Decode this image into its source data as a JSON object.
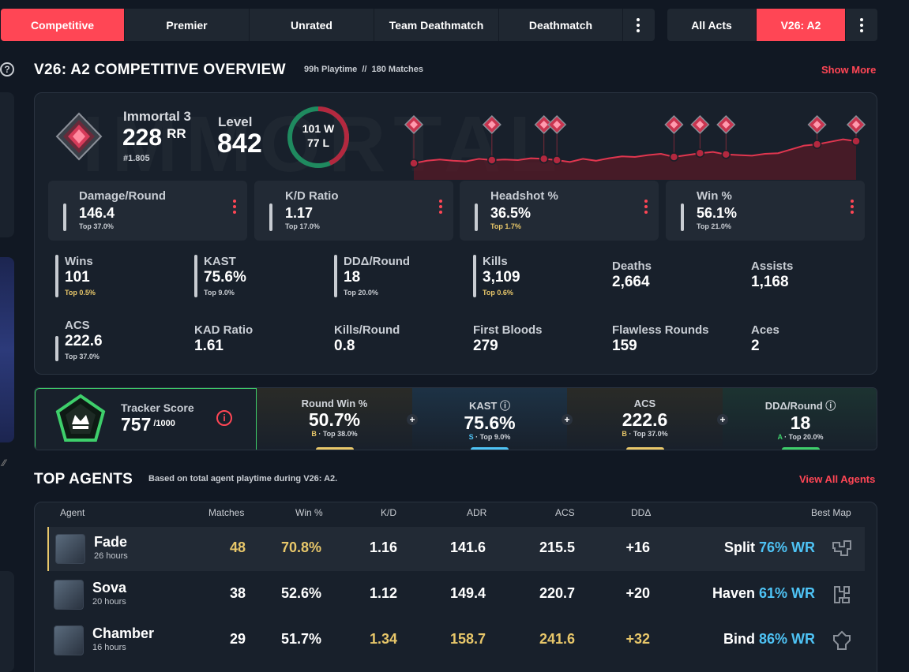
{
  "mode_tabs": [
    {
      "label": "Competitive",
      "active": true
    },
    {
      "label": "Premier",
      "active": false
    },
    {
      "label": "Unrated",
      "active": false
    },
    {
      "label": "Team Deathmatch",
      "active": false
    },
    {
      "label": "Deathmatch",
      "active": false
    }
  ],
  "act_tabs": [
    {
      "label": "All Acts",
      "active": false
    },
    {
      "label": "V26: A2",
      "active": true
    }
  ],
  "overview": {
    "title": "V26: A2 COMPETITIVE OVERVIEW",
    "playtime": "99h Playtime",
    "separator": "//",
    "matches": "180 Matches",
    "show_more": "Show More",
    "help_glyph": "?",
    "watermark": "IMMORTAL"
  },
  "rank": {
    "name": "Immortal 3",
    "rr": "228",
    "rr_unit": "RR",
    "position": "#1.805",
    "level_label": "Level",
    "level": "842"
  },
  "record": {
    "wins": 101,
    "losses": 77,
    "wins_text": "101 W",
    "losses_text": "77 L"
  },
  "rr_trend": {
    "values": [
      0.2,
      0.24,
      0.26,
      0.24,
      0.23,
      0.27,
      0.25,
      0.26,
      0.25,
      0.28,
      0.27,
      0.25,
      0.22,
      0.27,
      0.24,
      0.28,
      0.31,
      0.3,
      0.33,
      0.35,
      0.3,
      0.33,
      0.36,
      0.38,
      0.34,
      0.33,
      0.32,
      0.35,
      0.36,
      0.42,
      0.48,
      0.5,
      0.54,
      0.58,
      0.55
    ]
  },
  "main_stats": [
    {
      "label": "Damage/Round",
      "value": "146.4",
      "pct": "Top 37.0%",
      "gold": false
    },
    {
      "label": "K/D Ratio",
      "value": "1.17",
      "pct": "Top 17.0%",
      "gold": false
    },
    {
      "label": "Headshot %",
      "value": "36.5%",
      "pct": "Top 1.7%",
      "gold": true
    },
    {
      "label": "Win %",
      "value": "56.1%",
      "pct": "Top 21.0%",
      "gold": false
    }
  ],
  "mini_stats": [
    {
      "label": "Wins",
      "value": "101",
      "pct": "Top 0.5%",
      "gold": true
    },
    {
      "label": "KAST",
      "value": "75.6%",
      "pct": "Top 9.0%",
      "gold": false
    },
    {
      "label": "DDΔ/Round",
      "value": "18",
      "pct": "Top 20.0%",
      "gold": false
    },
    {
      "label": "Kills",
      "value": "3,109",
      "pct": "Top 0.6%",
      "gold": true
    },
    {
      "label": "Deaths",
      "value": "2,664",
      "pct": ""
    },
    {
      "label": "Assists",
      "value": "1,168",
      "pct": ""
    },
    {
      "label": "ACS",
      "value": "222.6",
      "pct": "Top 37.0%",
      "gold": false
    },
    {
      "label": "KAD Ratio",
      "value": "1.61",
      "pct": ""
    },
    {
      "label": "Kills/Round",
      "value": "0.8",
      "pct": ""
    },
    {
      "label": "First Bloods",
      "value": "279",
      "pct": ""
    },
    {
      "label": "Flawless Rounds",
      "value": "159",
      "pct": ""
    },
    {
      "label": "Aces",
      "value": "2",
      "pct": ""
    }
  ],
  "tracker": {
    "label": "Tracker Score",
    "value": "757",
    "max": "/1000",
    "info_glyph": "i",
    "cells": [
      {
        "label": "Round Win %",
        "value": "50.7%",
        "grade": "B",
        "sub": "· Top 38.0%",
        "grade_color": "#e8c76a",
        "indicator": "#e8c76a",
        "bg": "#2a2b27"
      },
      {
        "label": "KAST ⓘ",
        "value": "75.6%",
        "grade": "S",
        "sub": "· Top 9.0%",
        "grade_color": "#4ec3f5",
        "indicator": "#4ec3f5",
        "bg": "#1d3245"
      },
      {
        "label": "ACS",
        "value": "222.6",
        "grade": "B",
        "sub": "· Top 37.0%",
        "grade_color": "#e8c76a",
        "indicator": "#e8c76a",
        "bg": "#2a2b27"
      },
      {
        "label": "DDΔ/Round ⓘ",
        "value": "18",
        "grade": "A",
        "sub": "· Top 20.0%",
        "grade_color": "#3ecf6b",
        "indicator": "#3ecf6b",
        "bg": "#1c3331"
      }
    ]
  },
  "top_agents": {
    "title": "TOP AGENTS",
    "subtitle": "Based on total agent playtime during V26: A2.",
    "view_all": "View All Agents",
    "headers": [
      "Agent",
      "Matches",
      "Win %",
      "K/D",
      "ADR",
      "ACS",
      "DDΔ",
      "Best Map"
    ],
    "rows": [
      {
        "name": "Fade",
        "hours": "26 hours",
        "matches": "48",
        "win": "70.8%",
        "kd": "1.16",
        "adr": "141.6",
        "acs": "215.5",
        "dd": "+16",
        "map": "Split",
        "map_wr": "76% WR",
        "gold": [
          "matches",
          "win"
        ],
        "highlight": true
      },
      {
        "name": "Sova",
        "hours": "20 hours",
        "matches": "38",
        "win": "52.6%",
        "kd": "1.12",
        "adr": "149.4",
        "acs": "220.7",
        "dd": "+20",
        "map": "Haven",
        "map_wr": "61% WR",
        "gold": [],
        "highlight": false
      },
      {
        "name": "Chamber",
        "hours": "16 hours",
        "matches": "29",
        "win": "51.7%",
        "kd": "1.34",
        "adr": "158.7",
        "acs": "241.6",
        "dd": "+32",
        "map": "Bind",
        "map_wr": "86% WR",
        "gold": [
          "kd",
          "adr",
          "acs",
          "dd"
        ],
        "highlight": false
      }
    ]
  },
  "colors": {
    "accent": "#ff4655",
    "gold": "#e8c76a",
    "blue": "#4ec3f5",
    "green": "#3ecf6b"
  }
}
